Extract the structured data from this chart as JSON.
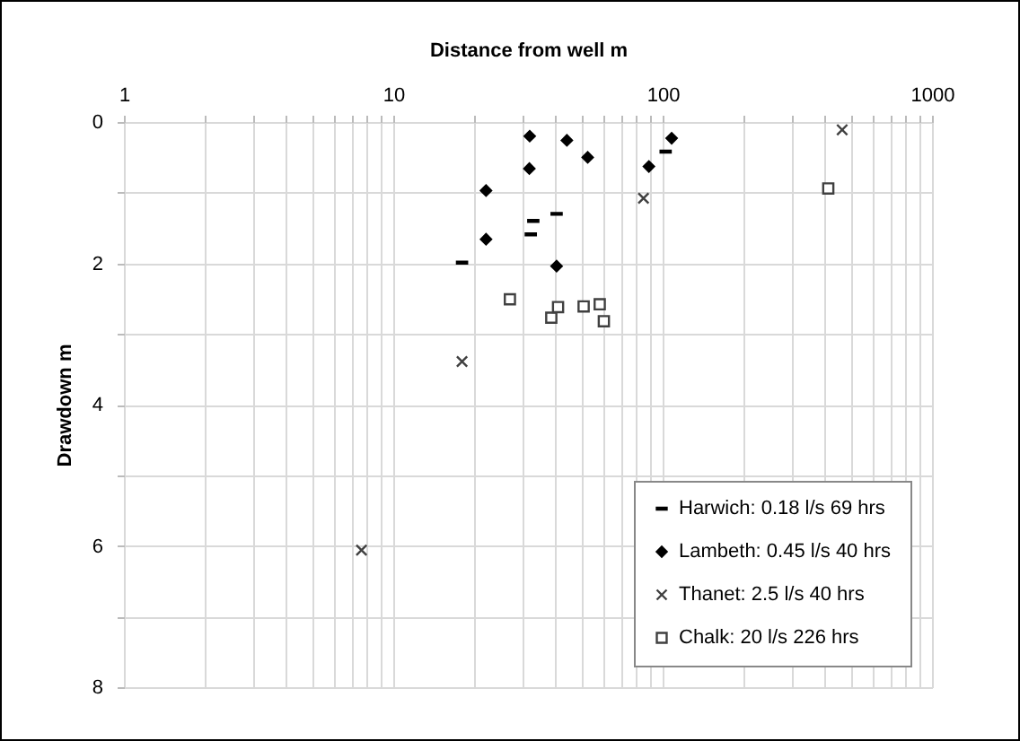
{
  "chart_data": {
    "type": "scatter",
    "xlabel": "Distance from well m",
    "ylabel": "Drawdown m",
    "log": "x",
    "grid": true,
    "legend": "bottom right",
    "xlim": [
      1,
      1000
    ],
    "xticks": [
      1,
      {
        "value": 2,
        "label": null
      },
      {
        "value": 3,
        "label": null
      },
      {
        "value": 4,
        "label": null
      },
      {
        "value": 5,
        "label": null
      },
      {
        "value": 6,
        "label": null
      },
      {
        "value": 7,
        "label": null
      },
      {
        "value": 8,
        "label": null
      },
      {
        "value": 9,
        "label": null
      },
      10,
      {
        "value": 20,
        "label": null
      },
      {
        "value": 30,
        "label": null
      },
      {
        "value": 40,
        "label": null
      },
      {
        "value": 50,
        "label": null
      },
      {
        "value": 60,
        "label": null
      },
      {
        "value": 70,
        "label": null
      },
      {
        "value": 80,
        "label": null
      },
      {
        "value": 90,
        "label": null
      },
      100,
      {
        "value": 200,
        "label": null
      },
      {
        "value": 300,
        "label": null
      },
      {
        "value": 400,
        "label": null
      },
      {
        "value": 500,
        "label": null
      },
      {
        "value": 600,
        "label": null
      },
      {
        "value": 700,
        "label": null
      },
      {
        "value": 800,
        "label": null
      },
      {
        "value": 900,
        "label": null
      },
      1000
    ],
    "ylim": [
      8,
      0
    ],
    "yticks": [
      0,
      {
        "value": 1,
        "label": null
      },
      2,
      {
        "value": 3,
        "label": null
      },
      4,
      {
        "value": 5,
        "label": null
      },
      6,
      {
        "value": 7,
        "label": null
      },
      8
    ],
    "series": [
      {
        "name": "Harwich: 0.18 l/s 69 hrs",
        "color": "#000000",
        "x": [
          18,
          32.4,
          33.1,
          40.4,
          102.6
        ],
        "values": [
          1.99,
          1.59,
          1.4,
          1.3,
          0.42
        ]
      },
      {
        "name": "Lambeth: 0.45 l/s 40 hrs",
        "color": "#000000",
        "marker": "diamond",
        "x": [
          32.1,
          44.1,
          52.7,
          32,
          22.1,
          22.1,
          40.4,
          88.9,
          108
        ],
        "values": [
          0.2,
          0.26,
          0.5,
          0.66,
          0.97,
          1.66,
          2.04,
          0.63,
          0.23
        ]
      },
      {
        "name": "Thanet: 2.5 l/s 40 hrs",
        "color": "#404040",
        "marker": "cross",
        "x": [
          84.9,
          18,
          7.62,
          464
        ],
        "values": [
          1.08,
          3.39,
          6.06,
          0.11
        ]
      },
      {
        "name": "Chalk: 20 l/s 226 hrs",
        "color": "#404040",
        "marker": "square",
        "x": [
          27.1,
          38.6,
          40.9,
          50.9,
          58.4,
          60.5,
          412
        ],
        "values": [
          2.51,
          2.77,
          2.62,
          2.61,
          2.58,
          2.82,
          0.94
        ]
      }
    ]
  }
}
